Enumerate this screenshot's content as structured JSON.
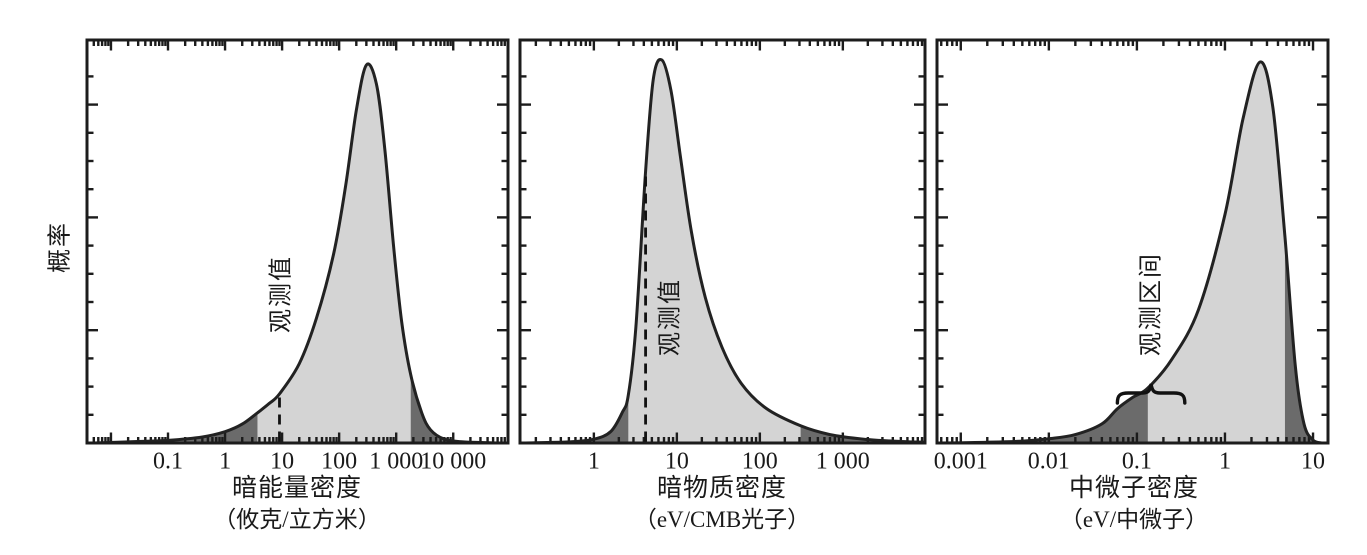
{
  "figure": {
    "y_axis_label": "概率",
    "background": "#ffffff",
    "colors": {
      "curve_line": "#222222",
      "axis": "#1c1c1c",
      "light_fill": "#d4d4d4",
      "dark_fill": "#6b6b6b",
      "text": "#1a1a1a"
    }
  },
  "chart_data": [
    {
      "type": "area",
      "id": "dark-energy",
      "title": "暗能量密度",
      "unit_label": "（攸克/立方米）",
      "ylabel": "概率",
      "xscale": "log",
      "x_log_range": [
        -2.42,
        4.96
      ],
      "x_ticks": [
        {
          "x": 0.1,
          "label": "0.1"
        },
        {
          "x": 1,
          "label": "1"
        },
        {
          "x": 10,
          "label": "10"
        },
        {
          "x": 100,
          "label": "100"
        },
        {
          "x": 1000,
          "label": "1 000"
        },
        {
          "x": 10000,
          "label": "10 000"
        }
      ],
      "peak_x": 300,
      "highlight_interval": [
        3.7,
        1800
      ],
      "annotation": {
        "kind": "dashed-line",
        "label": "观测值",
        "x": 9
      },
      "curve_points": [
        [
          0.005,
          0
        ],
        [
          0.02,
          0.003
        ],
        [
          0.1,
          0.007
        ],
        [
          0.4,
          0.016
        ],
        [
          1,
          0.03
        ],
        [
          2,
          0.05
        ],
        [
          3.7,
          0.08
        ],
        [
          6,
          0.105
        ],
        [
          9,
          0.13
        ],
        [
          20,
          0.21
        ],
        [
          40,
          0.33
        ],
        [
          80,
          0.5
        ],
        [
          130,
          0.68
        ],
        [
          200,
          0.88
        ],
        [
          300,
          1
        ],
        [
          450,
          0.95
        ],
        [
          630,
          0.78
        ],
        [
          900,
          0.52
        ],
        [
          1250,
          0.32
        ],
        [
          1800,
          0.18
        ],
        [
          2800,
          0.08
        ],
        [
          4000,
          0.035
        ],
        [
          7000,
          0.01
        ],
        [
          15000,
          0.003
        ],
        [
          60000,
          0
        ]
      ]
    },
    {
      "type": "area",
      "id": "dark-matter",
      "title": "暗物质密度",
      "unit_label": "（eV/CMB光子）",
      "ylabel": "概率",
      "xscale": "log",
      "x_log_range": [
        -0.89,
        3.99
      ],
      "x_ticks": [
        {
          "x": 1,
          "label": "1"
        },
        {
          "x": 10,
          "label": "10"
        },
        {
          "x": 100,
          "label": "100"
        },
        {
          "x": 1000,
          "label": "1 000"
        }
      ],
      "peak_x": 6.6,
      "highlight_interval": [
        2.6,
        310
      ],
      "annotation": {
        "kind": "dashed-line",
        "label": "观测值",
        "x": 4.2
      },
      "curve_points": [
        [
          0.15,
          0
        ],
        [
          0.5,
          0.003
        ],
        [
          1,
          0.01
        ],
        [
          1.6,
          0.03
        ],
        [
          2.2,
          0.08
        ],
        [
          2.6,
          0.125
        ],
        [
          3.2,
          0.3
        ],
        [
          4.2,
          0.71
        ],
        [
          5.2,
          0.95
        ],
        [
          6.6,
          1
        ],
        [
          8.5,
          0.92
        ],
        [
          11,
          0.75
        ],
        [
          15,
          0.55
        ],
        [
          22,
          0.38
        ],
        [
          35,
          0.25
        ],
        [
          60,
          0.155
        ],
        [
          120,
          0.09
        ],
        [
          310,
          0.045
        ],
        [
          700,
          0.022
        ],
        [
          1800,
          0.01
        ],
        [
          5000,
          0.004
        ],
        [
          9800,
          0.002
        ]
      ]
    },
    {
      "type": "area",
      "id": "neutrino",
      "title": "中微子密度",
      "unit_label": "（eV/中微子）",
      "ylabel": "概率",
      "xscale": "log",
      "x_log_range": [
        -3.27,
        1.17
      ],
      "x_ticks": [
        {
          "x": 0.001,
          "label": "0.001"
        },
        {
          "x": 0.01,
          "label": "0.01"
        },
        {
          "x": 0.1,
          "label": "0.1"
        },
        {
          "x": 1,
          "label": "1"
        },
        {
          "x": 10,
          "label": "10"
        }
      ],
      "peak_x": 2.5,
      "highlight_interval": [
        0.133,
        4.8
      ],
      "annotation": {
        "kind": "brace",
        "label": "观测区间",
        "x_interval": [
          0.06,
          0.35
        ]
      },
      "curve_points": [
        [
          0.00055,
          0
        ],
        [
          0.002,
          0.002
        ],
        [
          0.005,
          0.005
        ],
        [
          0.01,
          0.011
        ],
        [
          0.02,
          0.022
        ],
        [
          0.04,
          0.05
        ],
        [
          0.06,
          0.09
        ],
        [
          0.09,
          0.12
        ],
        [
          0.133,
          0.144
        ],
        [
          0.25,
          0.22
        ],
        [
          0.5,
          0.35
        ],
        [
          1,
          0.6
        ],
        [
          1.6,
          0.85
        ],
        [
          2.5,
          1
        ],
        [
          3.5,
          0.88
        ],
        [
          4.8,
          0.54
        ],
        [
          6.3,
          0.2
        ],
        [
          7.9,
          0.05
        ],
        [
          10,
          0.008
        ],
        [
          12.5,
          0
        ]
      ]
    }
  ]
}
